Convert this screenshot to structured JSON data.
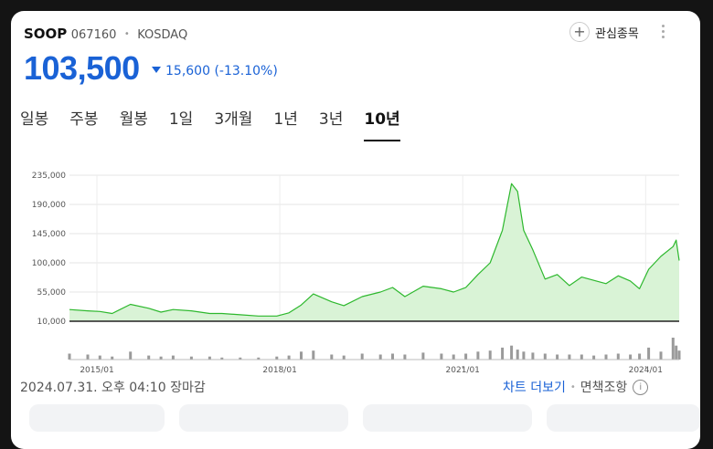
{
  "stock": {
    "name": "SOOP",
    "code": "067160",
    "separator": "•",
    "market": "KOSDAQ",
    "price": "103,500",
    "change": "15,600",
    "change_pct": "(-13.10%)"
  },
  "watchlist": {
    "plus": "+",
    "label": "관심종목"
  },
  "tabs": [
    {
      "label": "일봉"
    },
    {
      "label": "주봉"
    },
    {
      "label": "월봉"
    },
    {
      "label": "1일"
    },
    {
      "label": "3개월"
    },
    {
      "label": "1년"
    },
    {
      "label": "3년"
    },
    {
      "label": "10년"
    }
  ],
  "active_tab": "10년",
  "footer": {
    "timestamp": "2024.07.31. 오후 04:10 장마감",
    "more_chart": "차트 더보기",
    "separator": "•",
    "disclaimer": "면책조항",
    "info": "i"
  },
  "colors": {
    "accent": "#1a62d6",
    "line": "#2db82d",
    "fill": "#d9f3d6"
  },
  "chart_data": {
    "type": "area",
    "y_ticks": [
      "235,000",
      "190,000",
      "145,000",
      "100,000",
      "55,000",
      "10,000"
    ],
    "x_ticks": [
      "2015/01",
      "2018/01",
      "2021/01",
      "2024/01"
    ],
    "ylim": [
      10000,
      235000
    ],
    "grid": true,
    "x": [
      2014.6,
      2014.9,
      2015.1,
      2015.3,
      2015.6,
      2015.9,
      2016.1,
      2016.3,
      2016.6,
      2016.9,
      2017.1,
      2017.4,
      2017.7,
      2018.0,
      2018.2,
      2018.4,
      2018.6,
      2018.9,
      2019.1,
      2019.4,
      2019.7,
      2019.9,
      2020.1,
      2020.4,
      2020.7,
      2020.9,
      2021.1,
      2021.3,
      2021.5,
      2021.7,
      2021.85,
      2021.95,
      2022.05,
      2022.2,
      2022.4,
      2022.6,
      2022.8,
      2023.0,
      2023.2,
      2023.4,
      2023.6,
      2023.8,
      2023.95,
      2024.1,
      2024.3,
      2024.5,
      2024.55,
      2024.6
    ],
    "values": [
      28000,
      26000,
      25000,
      22000,
      36000,
      30000,
      24000,
      28000,
      26000,
      22000,
      22000,
      20000,
      18000,
      18000,
      23000,
      35000,
      52000,
      40000,
      34000,
      48000,
      55000,
      62000,
      48000,
      64000,
      60000,
      55000,
      62000,
      82000,
      100000,
      150000,
      222000,
      210000,
      150000,
      120000,
      75000,
      82000,
      65000,
      78000,
      73000,
      68000,
      80000,
      72000,
      60000,
      90000,
      110000,
      125000,
      135000,
      103500
    ],
    "volume": [
      6,
      5,
      4,
      3,
      8,
      4,
      3,
      4,
      3,
      3,
      2,
      2,
      2,
      3,
      4,
      8,
      9,
      5,
      4,
      6,
      5,
      6,
      5,
      7,
      6,
      5,
      6,
      8,
      9,
      12,
      14,
      10,
      8,
      7,
      6,
      5,
      5,
      5,
      4,
      5,
      6,
      5,
      6,
      12,
      8,
      22,
      14,
      9
    ]
  }
}
